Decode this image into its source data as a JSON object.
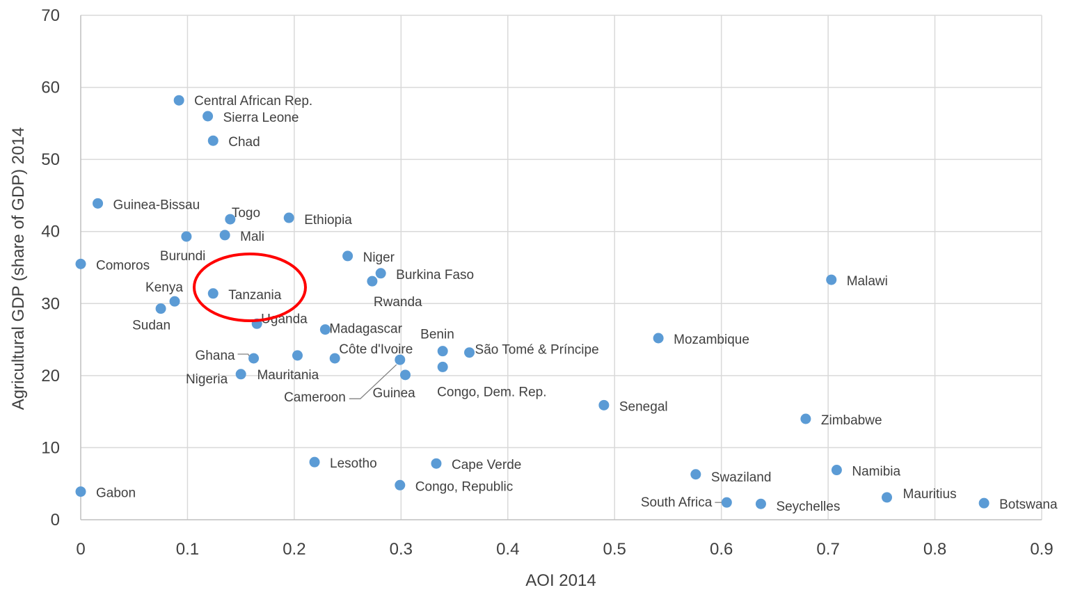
{
  "chart_data": {
    "type": "scatter",
    "title": "",
    "xlabel": "AOI 2014",
    "ylabel": "Agricultural GDP (share of GDP) 2014",
    "xlim": [
      0,
      0.9
    ],
    "ylim": [
      0,
      70
    ],
    "xticks": [
      "0",
      "0.1",
      "0.2",
      "0.3",
      "0.4",
      "0.5",
      "0.6",
      "0.7",
      "0.8",
      "0.9"
    ],
    "yticks": [
      "0",
      "10",
      "20",
      "30",
      "40",
      "50",
      "60",
      "70"
    ],
    "grid": true,
    "marker_color": "#5b9bd5",
    "highlight": {
      "label": "Tanzania",
      "color": "#ff0000",
      "shape": "ellipse"
    },
    "points": [
      {
        "label": "Central African Rep.",
        "x": 0.092,
        "y": 58.2
      },
      {
        "label": "Sierra Leone",
        "x": 0.119,
        "y": 56.0
      },
      {
        "label": "Chad",
        "x": 0.124,
        "y": 52.6
      },
      {
        "label": "Guinea-Bissau",
        "x": 0.016,
        "y": 43.9
      },
      {
        "label": "Togo",
        "x": 0.14,
        "y": 41.7
      },
      {
        "label": "Ethiopia",
        "x": 0.195,
        "y": 41.9
      },
      {
        "label": "Mali",
        "x": 0.135,
        "y": 39.5
      },
      {
        "label": "Burundi",
        "x": 0.099,
        "y": 39.3
      },
      {
        "label": "Comoros",
        "x": 0.0,
        "y": 35.5
      },
      {
        "label": "Niger",
        "x": 0.25,
        "y": 36.6
      },
      {
        "label": "Burkina Faso",
        "x": 0.281,
        "y": 34.2
      },
      {
        "label": "Rwanda",
        "x": 0.273,
        "y": 33.1
      },
      {
        "label": "Malawi",
        "x": 0.703,
        "y": 33.3
      },
      {
        "label": "Tanzania",
        "x": 0.124,
        "y": 31.4
      },
      {
        "label": "Kenya",
        "x": 0.088,
        "y": 30.3
      },
      {
        "label": "Sudan",
        "x": 0.075,
        "y": 29.3
      },
      {
        "label": "Uganda",
        "x": 0.165,
        "y": 27.2
      },
      {
        "label": "Madagascar",
        "x": 0.229,
        "y": 26.4
      },
      {
        "label": "Mozambique",
        "x": 0.541,
        "y": 25.2
      },
      {
        "label": "Benin",
        "x": 0.339,
        "y": 23.4
      },
      {
        "label": "São Tomé & Príncipe",
        "x": 0.364,
        "y": 23.2
      },
      {
        "label": "Côte d'Ivoire",
        "x": 0.238,
        "y": 22.4
      },
      {
        "label": "Ghana",
        "x": 0.162,
        "y": 22.4
      },
      {
        "label": "Mauritania",
        "x": 0.203,
        "y": 22.8
      },
      {
        "label": "Cameroon",
        "x": 0.299,
        "y": 22.2
      },
      {
        "label": "Congo, Dem. Rep.",
        "x": 0.339,
        "y": 21.2
      },
      {
        "label": "Nigeria",
        "x": 0.15,
        "y": 20.2
      },
      {
        "label": "Guinea",
        "x": 0.304,
        "y": 20.1
      },
      {
        "label": "Senegal",
        "x": 0.49,
        "y": 15.9
      },
      {
        "label": "Zimbabwe",
        "x": 0.679,
        "y": 14.0
      },
      {
        "label": "Lesotho",
        "x": 0.219,
        "y": 8.0
      },
      {
        "label": "Cape Verde",
        "x": 0.333,
        "y": 7.8
      },
      {
        "label": "Namibia",
        "x": 0.708,
        "y": 6.9
      },
      {
        "label": "Swaziland",
        "x": 0.576,
        "y": 6.3
      },
      {
        "label": "Congo, Republic",
        "x": 0.299,
        "y": 4.8
      },
      {
        "label": "Gabon",
        "x": 0.0,
        "y": 3.9
      },
      {
        "label": "Mauritius",
        "x": 0.755,
        "y": 3.1
      },
      {
        "label": "South Africa",
        "x": 0.605,
        "y": 2.4
      },
      {
        "label": "Seychelles",
        "x": 0.637,
        "y": 2.2
      },
      {
        "label": "Botswana",
        "x": 0.846,
        "y": 2.3
      }
    ]
  }
}
